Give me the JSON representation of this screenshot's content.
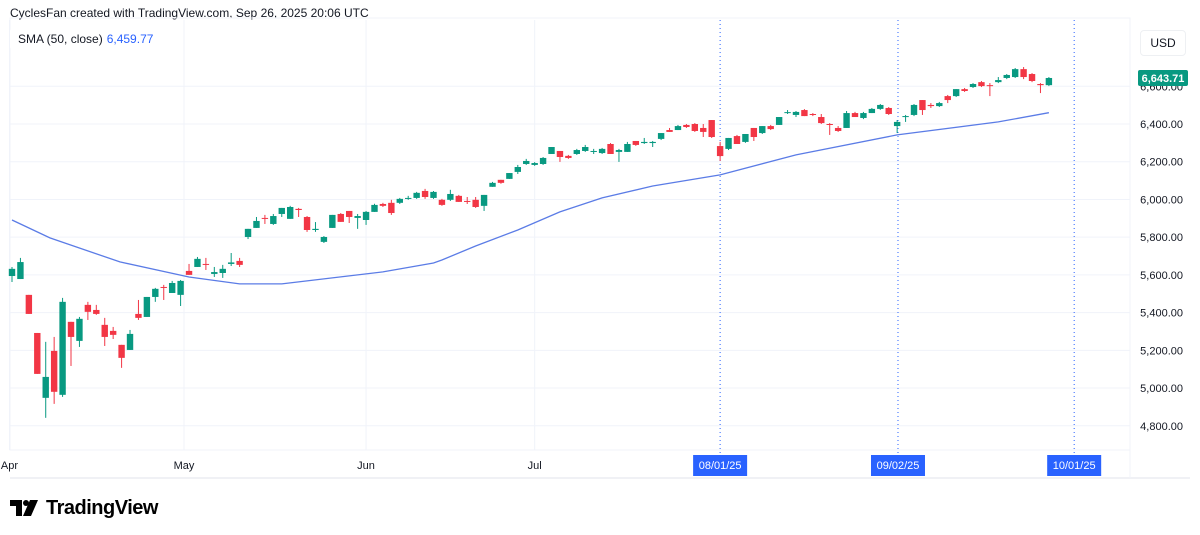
{
  "header": {
    "attribution": "CyclesFan created with TradingView.com, Sep 26, 2025 20:06 UTC"
  },
  "legend": {
    "label": "SMA (50, close)",
    "value": "6,459.77"
  },
  "currency_button": "USD",
  "brand": {
    "name": "TradingView"
  },
  "colors": {
    "up": "#089981",
    "down": "#F23645",
    "sma": "#5B7CE6",
    "date_tag": "#2962FF",
    "grid": "#F0F3FA"
  },
  "chart_data": {
    "type": "candlestick",
    "title": "",
    "last_price_label": "6,643.71",
    "ylim": [
      4700,
      6750
    ],
    "y_ticks": [
      {
        "value": 6400,
        "label": "6,400.00"
      },
      {
        "value": 6200,
        "label": "6,200.00"
      },
      {
        "value": 6000,
        "label": "6,000.00"
      },
      {
        "value": 5800,
        "label": "5,800.00"
      },
      {
        "value": 5600,
        "label": "5,600.00"
      },
      {
        "value": 5400,
        "label": "5,400.00"
      },
      {
        "value": 5200,
        "label": "5,200.00"
      },
      {
        "value": 5000,
        "label": "5,000.00"
      },
      {
        "value": 4800,
        "label": "4,800.00"
      },
      {
        "value": 6600,
        "label": "6,600.00"
      }
    ],
    "x_labels": [
      {
        "index": -0.3,
        "label": "Apr"
      },
      {
        "index": 20.4,
        "label": "May"
      },
      {
        "index": 42,
        "label": "Jun"
      },
      {
        "index": 62,
        "label": "Jul"
      }
    ],
    "date_markers": [
      {
        "index": 84,
        "label": "08/01/25"
      },
      {
        "index": 105.1,
        "label": "09/02/25"
      },
      {
        "index": 126,
        "label": "10/01/25"
      }
    ],
    "candles_ohlc": [
      [
        5594,
        5642,
        5562,
        5632
      ],
      [
        5578,
        5690,
        5578,
        5668
      ],
      [
        5494,
        5494,
        5393,
        5393
      ],
      [
        5292,
        5292,
        5075,
        5075
      ],
      [
        4948,
        5245,
        4842,
        5059
      ],
      [
        5197,
        5271,
        4916,
        4980
      ],
      [
        4964,
        5478,
        4953,
        5457
      ],
      [
        5351,
        5351,
        5117,
        5271
      ],
      [
        5250,
        5377,
        5218,
        5367
      ],
      [
        5441,
        5457,
        5361,
        5404
      ],
      [
        5414,
        5441,
        5388,
        5393
      ],
      [
        5335,
        5372,
        5223,
        5271
      ],
      [
        5303,
        5324,
        5260,
        5282
      ],
      [
        5229,
        5229,
        5107,
        5160
      ],
      [
        5202,
        5308,
        5202,
        5287
      ],
      [
        5393,
        5467,
        5361,
        5372
      ],
      [
        5377,
        5483,
        5377,
        5483
      ],
      [
        5483,
        5531,
        5457,
        5526
      ],
      [
        5536,
        5547,
        5467,
        5531
      ],
      [
        5504,
        5568,
        5504,
        5557
      ],
      [
        5494,
        5573,
        5435,
        5568
      ],
      [
        5621,
        5658,
        5600,
        5600
      ],
      [
        5642,
        5695,
        5642,
        5685
      ],
      [
        5658,
        5690,
        5626,
        5653
      ],
      [
        5605,
        5642,
        5589,
        5615
      ],
      [
        5610,
        5653,
        5584,
        5632
      ],
      [
        5658,
        5716,
        5647,
        5666
      ],
      [
        5674,
        5690,
        5642,
        5653
      ],
      [
        5801,
        5844,
        5790,
        5844
      ],
      [
        5849,
        5907,
        5849,
        5886
      ],
      [
        5902,
        5918,
        5870,
        5897
      ],
      [
        5870,
        5923,
        5865,
        5912
      ],
      [
        5923,
        5955,
        5907,
        5955
      ],
      [
        5897,
        5966,
        5897,
        5960
      ],
      [
        5950,
        5955,
        5907,
        5944
      ],
      [
        5907,
        5912,
        5828,
        5838
      ],
      [
        5838,
        5880,
        5828,
        5844
      ],
      [
        5775,
        5806,
        5769,
        5801
      ],
      [
        5849,
        5918,
        5849,
        5918
      ],
      [
        5923,
        5928,
        5881,
        5881
      ],
      [
        5939,
        5939,
        5875,
        5907
      ],
      [
        5902,
        5923,
        5844,
        5912
      ],
      [
        5891,
        5939,
        5865,
        5934
      ],
      [
        5934,
        5977,
        5934,
        5971
      ],
      [
        5976,
        5982,
        5960,
        5966
      ],
      [
        5982,
        5998,
        5918,
        5928
      ],
      [
        5982,
        6008,
        5976,
        6003
      ],
      [
        6003,
        6019,
        5998,
        6008
      ],
      [
        6008,
        6040,
        6003,
        6035
      ],
      [
        6045,
        6056,
        6003,
        6013
      ],
      [
        6008,
        6045,
        6003,
        6040
      ],
      [
        5998,
        6003,
        5966,
        5971
      ],
      [
        5998,
        6051,
        5992,
        6029
      ],
      [
        6019,
        6024,
        5987,
        5987
      ],
      [
        5992,
        6013,
        5976,
        5987
      ],
      [
        5998,
        6013,
        5955,
        5960
      ],
      [
        5966,
        6024,
        5939,
        6024
      ],
      [
        6067,
        6093,
        6067,
        6088
      ],
      [
        6104,
        6104,
        6083,
        6088
      ],
      [
        6109,
        6140,
        6109,
        6140
      ],
      [
        6146,
        6183,
        6135,
        6172
      ],
      [
        6188,
        6215,
        6183,
        6204
      ],
      [
        6183,
        6198,
        6178,
        6193
      ],
      [
        6188,
        6225,
        6183,
        6220
      ],
      [
        6241,
        6278,
        6241,
        6278
      ],
      [
        6257,
        6257,
        6199,
        6225
      ],
      [
        6231,
        6236,
        6215,
        6220
      ],
      [
        6241,
        6268,
        6236,
        6262
      ],
      [
        6257,
        6289,
        6252,
        6278
      ],
      [
        6252,
        6268,
        6241,
        6257
      ],
      [
        6246,
        6273,
        6241,
        6268
      ],
      [
        6294,
        6299,
        6241,
        6241
      ],
      [
        6252,
        6268,
        6199,
        6262
      ],
      [
        6252,
        6305,
        6252,
        6294
      ],
      [
        6310,
        6310,
        6284,
        6289
      ],
      [
        6299,
        6326,
        6294,
        6305
      ],
      [
        6299,
        6310,
        6278,
        6305
      ],
      [
        6321,
        6352,
        6315,
        6352
      ],
      [
        6368,
        6379,
        6358,
        6358
      ],
      [
        6368,
        6395,
        6368,
        6389
      ],
      [
        6395,
        6400,
        6379,
        6384
      ],
      [
        6400,
        6405,
        6358,
        6363
      ],
      [
        6379,
        6400,
        6331,
        6358
      ],
      [
        6421,
        6421,
        6326,
        6331
      ],
      [
        6283,
        6305,
        6204,
        6230
      ],
      [
        6268,
        6326,
        6262,
        6326
      ],
      [
        6336,
        6342,
        6294,
        6294
      ],
      [
        6305,
        6347,
        6300,
        6347
      ],
      [
        6379,
        6379,
        6310,
        6331
      ],
      [
        6352,
        6389,
        6347,
        6389
      ],
      [
        6389,
        6395,
        6368,
        6373
      ],
      [
        6395,
        6437,
        6395,
        6437
      ],
      [
        6458,
        6474,
        6453,
        6463
      ],
      [
        6448,
        6469,
        6437,
        6464
      ],
      [
        6474,
        6479,
        6442,
        6442
      ],
      [
        6453,
        6458,
        6442,
        6448
      ],
      [
        6437,
        6453,
        6400,
        6405
      ],
      [
        6400,
        6405,
        6342,
        6395
      ],
      [
        6379,
        6389,
        6358,
        6363
      ],
      [
        6379,
        6469,
        6379,
        6458
      ],
      [
        6458,
        6464,
        6437,
        6437
      ],
      [
        6432,
        6464,
        6426,
        6458
      ],
      [
        6458,
        6485,
        6458,
        6480
      ],
      [
        6480,
        6506,
        6475,
        6501
      ],
      [
        6485,
        6490,
        6448,
        6453
      ],
      [
        6389,
        6421,
        6352,
        6411
      ],
      [
        6437,
        6448,
        6411,
        6442
      ],
      [
        6448,
        6506,
        6442,
        6501
      ],
      [
        6527,
        6527,
        6448,
        6474
      ],
      [
        6501,
        6511,
        6485,
        6495
      ],
      [
        6495,
        6517,
        6490,
        6511
      ],
      [
        6548,
        6554,
        6511,
        6527
      ],
      [
        6548,
        6585,
        6543,
        6585
      ],
      [
        6585,
        6591,
        6570,
        6575
      ],
      [
        6596,
        6617,
        6591,
        6612
      ],
      [
        6622,
        6628,
        6596,
        6601
      ],
      [
        6606,
        6617,
        6548,
        6601
      ],
      [
        6622,
        6649,
        6617,
        6633
      ],
      [
        6644,
        6665,
        6638,
        6660
      ],
      [
        6649,
        6697,
        6644,
        6691
      ],
      [
        6691,
        6702,
        6638,
        6649
      ],
      [
        6665,
        6670,
        6622,
        6628
      ],
      [
        6612,
        6617,
        6564,
        6606
      ],
      [
        6606,
        6649,
        6601,
        6644
      ]
    ],
    "sma_series": {
      "name": "SMA (50, close)",
      "points": [
        [
          0,
          5891
        ],
        [
          4.5,
          5796
        ],
        [
          12.8,
          5669
        ],
        [
          21,
          5589
        ],
        [
          27,
          5552
        ],
        [
          32,
          5552
        ],
        [
          38,
          5584
        ],
        [
          44,
          5616
        ],
        [
          50,
          5663
        ],
        [
          51,
          5679
        ],
        [
          55,
          5753
        ],
        [
          60,
          5838
        ],
        [
          65,
          5934
        ],
        [
          70,
          6008
        ],
        [
          76,
          6071
        ],
        [
          84,
          6130
        ],
        [
          93,
          6236
        ],
        [
          105,
          6342
        ],
        [
          117,
          6411
        ],
        [
          123,
          6460
        ]
      ]
    }
  }
}
